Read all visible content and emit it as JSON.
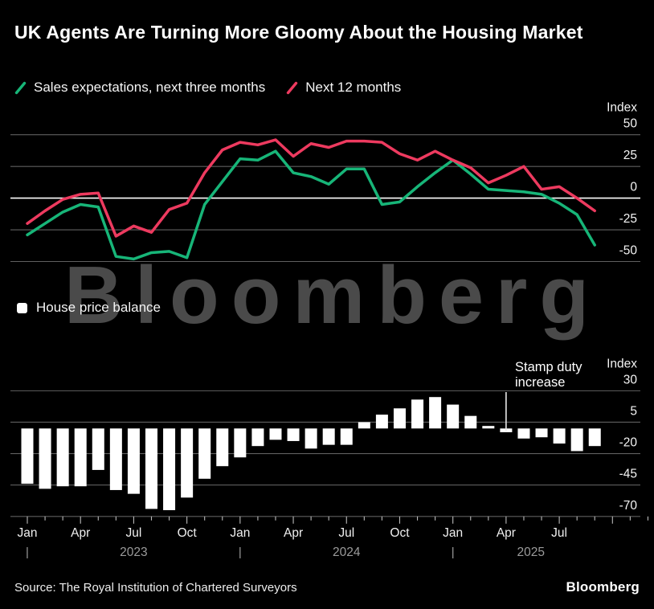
{
  "title": "UK Agents Are Turning More Gloomy About the Housing Market",
  "watermark": "Bloomberg",
  "source": "Source: The Royal Institution of Chartered Surveyors",
  "logo": "Bloomberg",
  "colors": {
    "background": "#000000",
    "text": "#f5f5f5",
    "grid": "#5f5f5f",
    "zero_line": "#ffffff",
    "green": "#17b578",
    "pink": "#ed3a5f",
    "bars": "#ffffff",
    "watermark": "#4a4a4a",
    "year_text": "#9b9b9b",
    "tick": "#bbbbbb"
  },
  "months": [
    "Jan 2023",
    "Feb 2023",
    "Mar 2023",
    "Apr 2023",
    "May 2023",
    "Jun 2023",
    "Jul 2023",
    "Aug 2023",
    "Sep 2023",
    "Oct 2023",
    "Nov 2023",
    "Dec 2023",
    "Jan 2024",
    "Feb 2024",
    "Mar 2024",
    "Apr 2024",
    "May 2024",
    "Jun 2024",
    "Jul 2024",
    "Aug 2024",
    "Sep 2024",
    "Oct 2024",
    "Nov 2024",
    "Dec 2024",
    "Jan 2025",
    "Feb 2025",
    "Mar 2025",
    "Apr 2025",
    "May 2025",
    "Jun 2025",
    "Jul 2025",
    "Aug 2025",
    "Sep 2025"
  ],
  "x_axis": {
    "years": [
      {
        "label": "2023",
        "center_index": 6,
        "separator_index": 0
      },
      {
        "label": "2024",
        "center_index": 18,
        "separator_index": 12
      },
      {
        "label": "2025",
        "center_index": 28.4,
        "separator_index": 24
      }
    ]
  },
  "chart_data": [
    {
      "type": "line",
      "title": "Sales expectations",
      "ylabel": "Index",
      "yticks": [
        50,
        25,
        0,
        -25,
        -50
      ],
      "ylim": [
        -60,
        55
      ],
      "legend_position": "top-left",
      "grid": true,
      "x_source": "months",
      "series": [
        {
          "name": "Sales expectations, next three months",
          "color": "#17b578",
          "values": [
            -29,
            -20,
            -11,
            -5,
            -7,
            -46,
            -48,
            -43,
            -42,
            -47,
            -5,
            13,
            31,
            30,
            37,
            20,
            17,
            11,
            23,
            23,
            -5,
            -3,
            9,
            20,
            30,
            19,
            7,
            6,
            5,
            3,
            -4,
            -13,
            -37
          ]
        },
        {
          "name": "Next 12 months",
          "color": "#ed3a5f",
          "values": [
            -20,
            -10,
            -1,
            3,
            4,
            -30,
            -22,
            -27,
            -9,
            -4,
            20,
            38,
            44,
            42,
            46,
            33,
            43,
            40,
            45,
            45,
            44,
            35,
            30,
            37,
            30,
            24,
            12,
            18,
            25,
            7,
            9,
            0,
            -10
          ]
        }
      ]
    },
    {
      "type": "bar",
      "name": "House price balance",
      "color": "#ffffff",
      "ylabel": "Index",
      "yticks": [
        30,
        5,
        -20,
        -45,
        -70
      ],
      "ylim": [
        -75,
        35
      ],
      "grid": true,
      "x_source": "months",
      "values": [
        -44,
        -48,
        -46,
        -46,
        -33,
        -49,
        -52,
        -64,
        -65,
        -55,
        -40,
        -30,
        -23,
        -14,
        -9,
        -10,
        -16,
        -13,
        -13,
        5,
        11,
        16,
        23,
        25,
        19,
        10,
        2,
        -3,
        -8,
        -7,
        -12,
        -18,
        -14
      ],
      "annotation": {
        "line1": "Stamp duty",
        "line2": "increase",
        "at_month": "Apr 2025",
        "month_index": 27
      }
    }
  ]
}
